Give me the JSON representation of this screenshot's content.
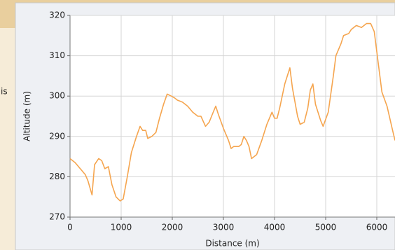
{
  "fragment": "is",
  "chart_data": {
    "type": "line",
    "x_label": "Distance (m)",
    "y_label": "Altitude (m)",
    "color": "#f5a54f",
    "grid": true,
    "xlim": [
      0,
      6356
    ],
    "ylim": [
      270,
      320
    ],
    "xticks": [
      0,
      1000,
      2000,
      3000,
      4000,
      5000,
      6000
    ],
    "yticks": [
      270,
      280,
      290,
      300,
      310,
      320
    ],
    "x": [
      0,
      100,
      200,
      300,
      350,
      430,
      480,
      560,
      620,
      680,
      750,
      820,
      900,
      980,
      1040,
      1120,
      1200,
      1300,
      1370,
      1420,
      1480,
      1520,
      1600,
      1680,
      1750,
      1830,
      1900,
      1980,
      2050,
      2100,
      2200,
      2300,
      2400,
      2500,
      2560,
      2650,
      2720,
      2800,
      2850,
      2900,
      3000,
      3100,
      3150,
      3200,
      3300,
      3350,
      3400,
      3450,
      3500,
      3550,
      3650,
      3750,
      3850,
      3950,
      4000,
      4050,
      4100,
      4200,
      4300,
      4350,
      4450,
      4500,
      4580,
      4650,
      4700,
      4750,
      4800,
      4900,
      4950,
      5050,
      5150,
      5200,
      5300,
      5350,
      5450,
      5500,
      5600,
      5700,
      5750,
      5800,
      5880,
      5950,
      6000,
      6100,
      6200,
      6300,
      6356
    ],
    "values": [
      284.5,
      283.5,
      282,
      280.5,
      279,
      275.5,
      283,
      284.5,
      284,
      282,
      282.5,
      278,
      275,
      274,
      274.5,
      280,
      286,
      290,
      292.5,
      291.5,
      291.5,
      289.5,
      290,
      291,
      294.5,
      298,
      300.5,
      300,
      299.5,
      299,
      298.5,
      297.5,
      296,
      295,
      295,
      292.5,
      293.5,
      296,
      297.5,
      295.5,
      292,
      289,
      287,
      287.5,
      287.5,
      288,
      290,
      289,
      287.5,
      284.5,
      285.5,
      289,
      293,
      296,
      294.5,
      294.5,
      297,
      303,
      307,
      302,
      295,
      293,
      293.5,
      297,
      301.5,
      303,
      298,
      294,
      292.5,
      296,
      305,
      310,
      313,
      315,
      315.5,
      316.5,
      317.5,
      317,
      317.5,
      318,
      318,
      316,
      311,
      301,
      297.5,
      292,
      289
    ]
  }
}
